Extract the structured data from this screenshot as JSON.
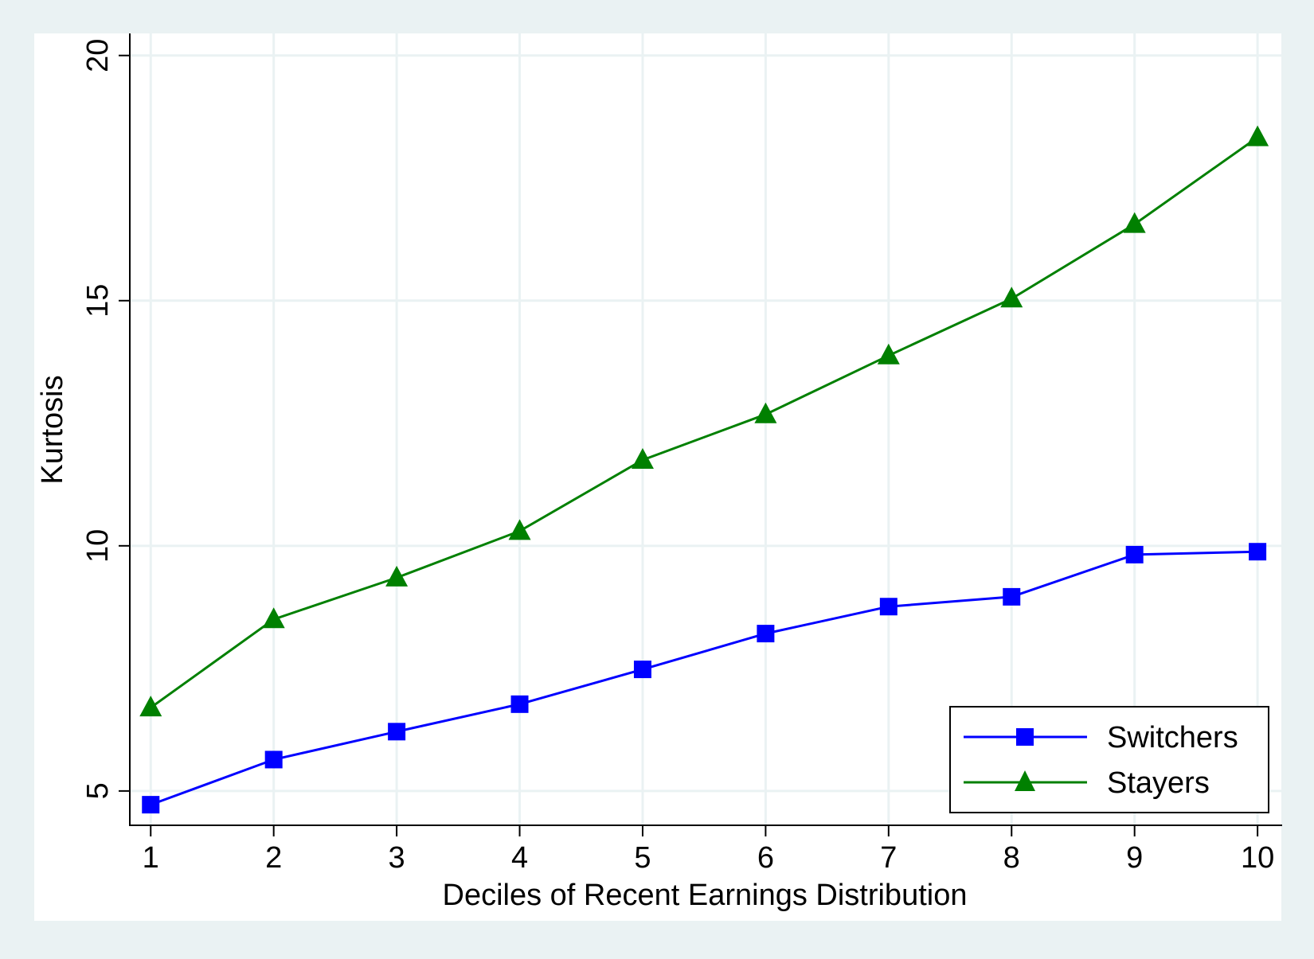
{
  "chart_data": {
    "type": "line",
    "title": "",
    "xlabel": "Deciles of Recent Earnings Distribution",
    "ylabel": "Kurtosis",
    "x": [
      1,
      2,
      3,
      4,
      5,
      6,
      7,
      8,
      9,
      10
    ],
    "xticks": [
      "1",
      "2",
      "3",
      "4",
      "5",
      "6",
      "7",
      "8",
      "9",
      "10"
    ],
    "yticks": [
      "5",
      "10",
      "15",
      "20"
    ],
    "ylim": [
      4.3,
      20.45
    ],
    "xlim": [
      0.83,
      10.2
    ],
    "grid": true,
    "legend_position": "bottom-right",
    "series": [
      {
        "name": "Switchers",
        "color": "#0000ff",
        "marker": "square",
        "values": [
          4.72,
          5.64,
          6.21,
          6.77,
          7.48,
          8.21,
          8.76,
          8.96,
          9.82,
          9.88
        ]
      },
      {
        "name": "Stayers",
        "color": "#008000",
        "marker": "triangle",
        "values": [
          6.7,
          8.5,
          9.35,
          10.3,
          11.75,
          12.68,
          13.88,
          15.04,
          16.56,
          18.33
        ]
      }
    ],
    "colors": {
      "outer_background": "#eaf2f3",
      "plot_background": "#ffffff",
      "grid": "#eaf2f3",
      "axis": "#000000"
    }
  }
}
